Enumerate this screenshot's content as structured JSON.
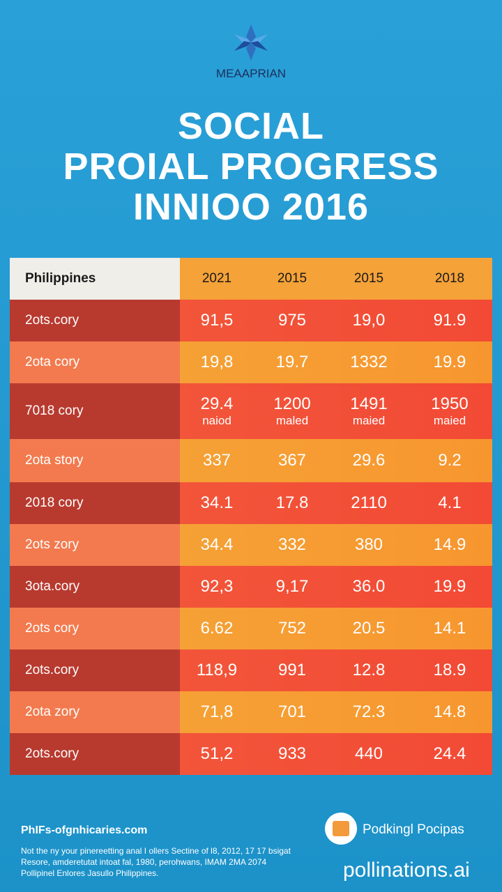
{
  "header": {
    "brand": "MEAAPRIAN",
    "title_lines": [
      "SOCIAL",
      "PROIAL PROGRESS",
      "INNIOO 2016"
    ]
  },
  "table": {
    "corner": "Philippines",
    "columns": [
      "2021",
      "2015",
      "2015",
      "2018"
    ],
    "rows": [
      {
        "label": "2ots.cory",
        "cells": [
          "91,5",
          "975",
          "19,0",
          "91.9"
        ]
      },
      {
        "label": "2ota cory",
        "cells": [
          "19,8",
          "19.7",
          "1332",
          "19.9"
        ]
      },
      {
        "label": "7018 cory",
        "cells": [
          "29.4",
          "1200",
          "1491",
          "1950"
        ],
        "notes": [
          "naiod",
          "maled",
          "maied",
          "maied"
        ]
      },
      {
        "label": "2ota story",
        "cells": [
          "337",
          "367",
          "29.6",
          "9.2"
        ]
      },
      {
        "label": "2018 cory",
        "cells": [
          "34.1",
          "17.8",
          "2110",
          "4.1"
        ]
      },
      {
        "label": "2ots zory",
        "cells": [
          "34.4",
          "332",
          "380",
          "14.9"
        ]
      },
      {
        "label": "3ota.cory",
        "cells": [
          "92,3",
          "9,17",
          "36.0",
          "19.9"
        ]
      },
      {
        "label": "2ots cory",
        "cells": [
          "6.62",
          "752",
          "20.5",
          "14.1"
        ]
      },
      {
        "label": "2ots.cory",
        "cells": [
          "118,9",
          "991",
          "12.8",
          "18.9"
        ]
      },
      {
        "label": "2ota zory",
        "cells": [
          "71,8",
          "701",
          "72.3",
          "14.8"
        ]
      },
      {
        "label": "2ots.cory",
        "cells": [
          "51,2",
          "933",
          "440",
          "24.4"
        ]
      }
    ]
  },
  "footer": {
    "site": "PhIFs-ofgnhicaries.com",
    "notes": [
      "Not the ny your pinereetting anal I ollers Sectine of l8, 2012, 17 17 bsigat",
      "Resore, amderetutat intoat fal, 1980, perohwans, IMAM 2MA 2074",
      "Pollipinel Enlores Jasullo Philippines."
    ],
    "partner": "Podkingl Pocipas",
    "credit": "pollinations.ai"
  }
}
